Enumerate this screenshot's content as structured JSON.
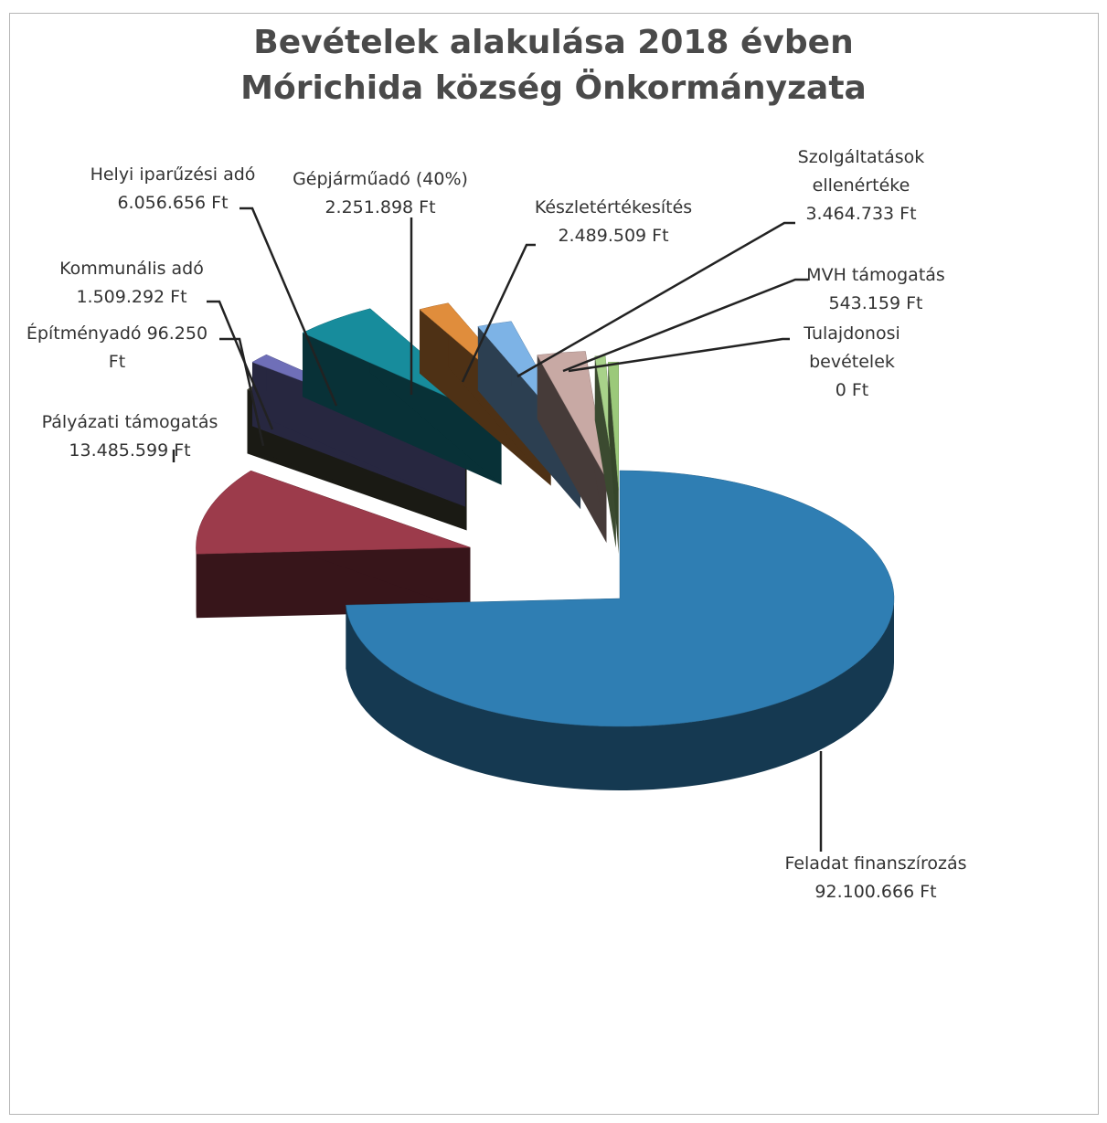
{
  "chart_data": {
    "type": "pie",
    "title": "Bevételek alakulása 2018 évben",
    "subtitle": "Mórichida község Önkormányzata",
    "slices": [
      {
        "label": "Feladat finanszírozás",
        "value": 92100666,
        "value_label": "92.100.666 Ft",
        "color": "#2f7eb3"
      },
      {
        "label": "Pályázati támogatás",
        "value": 13485599,
        "value_label": "13.485.599 Ft",
        "color": "#9c3b4b"
      },
      {
        "label": "Építményadó",
        "value": 96250,
        "value_label": "96.250 Ft",
        "color": "#4a4a3a"
      },
      {
        "label": "Kommunális adó",
        "value": 1509292,
        "value_label": "1.509.292 Ft",
        "color": "#6f6fb8"
      },
      {
        "label": "Helyi iparűzési adó",
        "value": 6056656,
        "value_label": "6.056.656 Ft",
        "color": "#178c9c"
      },
      {
        "label": "Gépjárműadó (40%)",
        "value": 2251898,
        "value_label": "2.251.898 Ft",
        "color": "#e08d3c"
      },
      {
        "label": "Készletértékesítés",
        "value": 2489509,
        "value_label": "2.489.509 Ft",
        "color": "#7db3e6"
      },
      {
        "label": "Szolgáltatások ellenértéke",
        "value": 3464733,
        "value_label": "3.464.733 Ft",
        "color": "#c8a9a4"
      },
      {
        "label": "MVH támogatás",
        "value": 543159,
        "value_label": "543.159 Ft",
        "color": "#a8d28a"
      },
      {
        "label": "Tulajdonosi bevételek",
        "value": 0,
        "value_label": "0 Ft",
        "color": "#9bc97a"
      }
    ],
    "legend": "none",
    "style": "exploded-3d"
  },
  "labels": {
    "feladat": {
      "l1": "Feladat finanszírozás",
      "l2": "92.100.666 Ft"
    },
    "palyazati": {
      "l1": "Pályázati támogatás",
      "l2": "13.485.599 Ft"
    },
    "epitmeny": {
      "l1": "Építményadó 96.250",
      "l2": "Ft"
    },
    "kommunalis": {
      "l1": "Kommunális adó",
      "l2": "1.509.292 Ft"
    },
    "iparuzesi": {
      "l1": "Helyi iparűzési adó",
      "l2": "6.056.656 Ft"
    },
    "gepjarmu": {
      "l1": "Gépjárműadó (40%)",
      "l2": "2.251.898 Ft"
    },
    "keszlet": {
      "l1": "Készletértékesítés",
      "l2": "2.489.509 Ft"
    },
    "szolgaltatas": {
      "l1": "Szolgáltatások",
      "l2": "ellenértéke",
      "l3": "3.464.733 Ft"
    },
    "mvh": {
      "l1": "MVH támogatás",
      "l2": "543.159 Ft"
    },
    "tulajdonosi": {
      "l1": "Tulajdonosi",
      "l2": "bevételek",
      "l3": "0 Ft"
    }
  }
}
